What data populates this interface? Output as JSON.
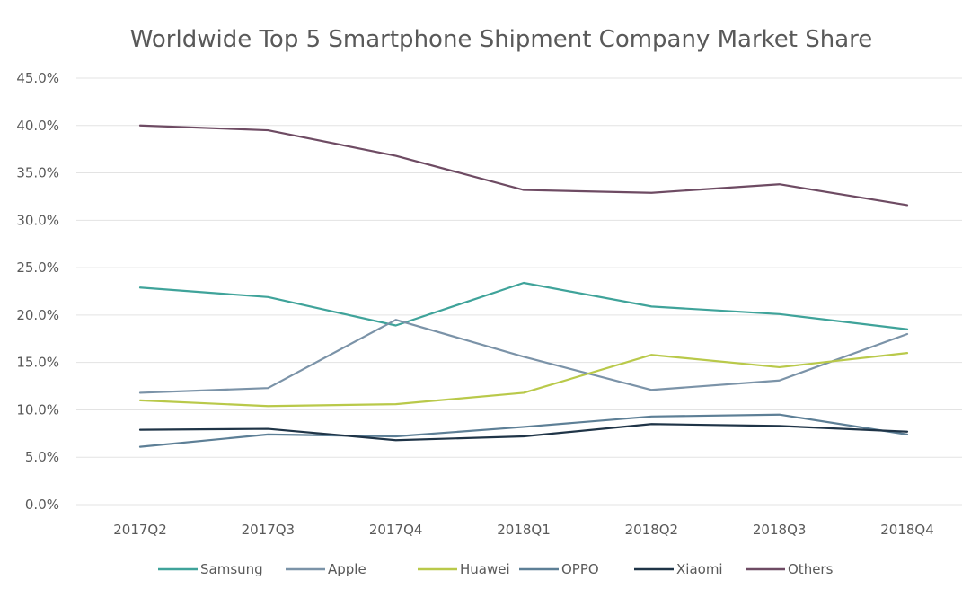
{
  "chart_data": {
    "type": "line",
    "title": "Worldwide Top 5 Smartphone Shipment Company Market Share",
    "xlabel": "",
    "ylabel": "",
    "categories": [
      "2017Q2",
      "2017Q3",
      "2017Q4",
      "2018Q1",
      "2018Q2",
      "2018Q3",
      "2018Q4"
    ],
    "ylim": [
      0,
      45
    ],
    "yticks": [
      0,
      5,
      10,
      15,
      20,
      25,
      30,
      35,
      40,
      45
    ],
    "ytick_labels": [
      "0.0%",
      "5.0%",
      "10.0%",
      "15.0%",
      "20.0%",
      "25.0%",
      "30.0%",
      "35.0%",
      "40.0%",
      "45.0%"
    ],
    "grid": true,
    "legend_position": "bottom",
    "series": [
      {
        "name": "Samsung",
        "color": "#3fa39a",
        "values": [
          22.9,
          21.9,
          18.9,
          23.4,
          20.9,
          20.1,
          18.5
        ]
      },
      {
        "name": "Apple",
        "color": "#7b93a8",
        "values": [
          11.8,
          12.3,
          19.5,
          15.6,
          12.1,
          13.1,
          18.0
        ]
      },
      {
        "name": "Huawei",
        "color": "#b9c94a",
        "values": [
          11.0,
          10.4,
          10.6,
          11.8,
          15.8,
          14.5,
          16.0
        ]
      },
      {
        "name": "OPPO",
        "color": "#5d7f96",
        "values": [
          6.1,
          7.4,
          7.2,
          8.2,
          9.3,
          9.5,
          7.4
        ]
      },
      {
        "name": "Xiaomi",
        "color": "#1f3447",
        "values": [
          7.9,
          8.0,
          6.8,
          7.2,
          8.5,
          8.3,
          7.7
        ]
      },
      {
        "name": "Others",
        "color": "#6e4b63",
        "values": [
          40.0,
          39.5,
          36.8,
          33.2,
          32.9,
          33.8,
          31.6
        ]
      }
    ]
  }
}
